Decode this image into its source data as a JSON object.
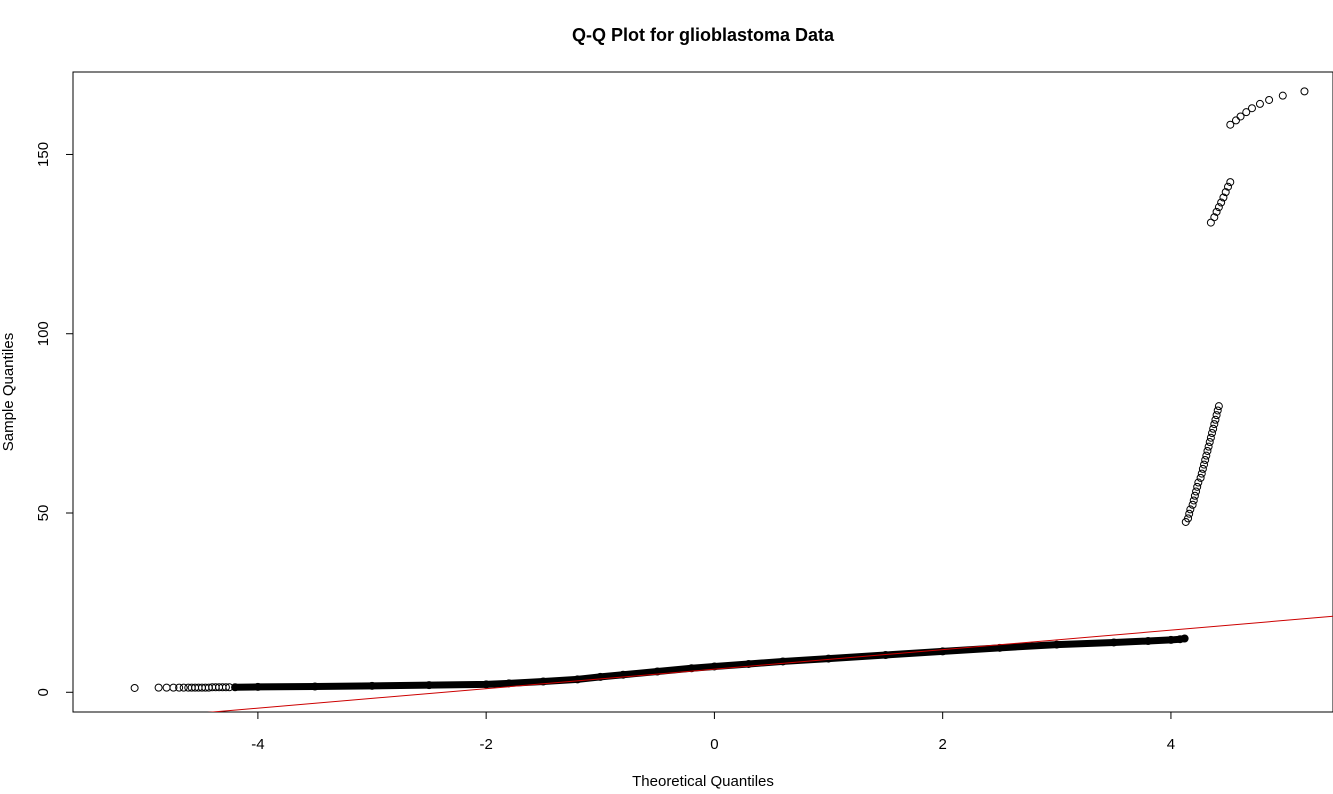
{
  "chart_data": {
    "type": "scatter",
    "title": "Q-Q Plot for glioblastoma Data",
    "xlabel": "Theoretical Quantiles",
    "ylabel": "Sample Quantiles",
    "xlim": [
      -5.62,
      5.42
    ],
    "ylim": [
      -5.5,
      173
    ],
    "x_ticks": [
      -4,
      -2,
      0,
      2,
      4
    ],
    "y_ticks": [
      0,
      50,
      100,
      150
    ],
    "grid": false,
    "point_color": "#000000",
    "line_color": "#cc0000",
    "reference_line": {
      "intercept": 6.45,
      "slope": 2.72
    },
    "series": [
      {
        "points": [
          [
            -5.08,
            1.2
          ],
          [
            -4.87,
            1.3
          ],
          [
            -4.8,
            1.3
          ],
          [
            -4.74,
            1.3
          ],
          [
            -4.69,
            1.3
          ],
          [
            -4.65,
            1.3
          ],
          [
            -4.61,
            1.3
          ],
          [
            -4.58,
            1.3
          ],
          [
            -4.55,
            1.3
          ],
          [
            -4.52,
            1.3
          ],
          [
            -4.49,
            1.3
          ],
          [
            -4.46,
            1.3
          ],
          [
            -4.43,
            1.3
          ],
          [
            -4.4,
            1.4
          ],
          [
            -4.37,
            1.4
          ],
          [
            -4.34,
            1.4
          ],
          [
            -4.31,
            1.4
          ],
          [
            -4.28,
            1.4
          ],
          [
            -4.25,
            1.4
          ],
          [
            -4.2,
            1.4
          ],
          [
            -4.0,
            1.5
          ],
          [
            -3.5,
            1.6
          ],
          [
            -3.0,
            1.8
          ],
          [
            -2.5,
            2.0
          ],
          [
            -2.0,
            2.2
          ],
          [
            -1.8,
            2.5
          ],
          [
            -1.5,
            3.0
          ],
          [
            -1.2,
            3.6
          ],
          [
            -1.0,
            4.3
          ],
          [
            -0.8,
            4.9
          ],
          [
            -0.5,
            5.8
          ],
          [
            -0.2,
            6.7
          ],
          [
            0.0,
            7.2
          ],
          [
            0.3,
            7.9
          ],
          [
            0.6,
            8.6
          ],
          [
            1.0,
            9.4
          ],
          [
            1.5,
            10.4
          ],
          [
            2.0,
            11.4
          ],
          [
            2.5,
            12.4
          ],
          [
            3.0,
            13.3
          ],
          [
            3.5,
            13.9
          ],
          [
            3.8,
            14.3
          ],
          [
            4.0,
            14.6
          ],
          [
            4.08,
            14.8
          ],
          [
            4.12,
            15.0
          ],
          [
            4.13,
            47.5
          ],
          [
            4.15,
            48.5
          ],
          [
            4.16,
            49.8
          ],
          [
            4.17,
            51.0
          ],
          [
            4.19,
            52.3
          ],
          [
            4.2,
            53.5
          ],
          [
            4.21,
            54.8
          ],
          [
            4.22,
            56.0
          ],
          [
            4.23,
            57.3
          ],
          [
            4.24,
            58.5
          ],
          [
            4.26,
            59.8
          ],
          [
            4.27,
            61.0
          ],
          [
            4.28,
            62.3
          ],
          [
            4.29,
            63.5
          ],
          [
            4.3,
            64.8
          ],
          [
            4.31,
            66.0
          ],
          [
            4.32,
            67.3
          ],
          [
            4.33,
            68.5
          ],
          [
            4.34,
            69.8
          ],
          [
            4.35,
            71.0
          ],
          [
            4.36,
            72.3
          ],
          [
            4.37,
            73.5
          ],
          [
            4.38,
            74.8
          ],
          [
            4.39,
            76.0
          ],
          [
            4.4,
            77.3
          ],
          [
            4.41,
            78.6
          ],
          [
            4.42,
            79.8
          ],
          [
            4.35,
            131.0
          ],
          [
            4.38,
            132.5
          ],
          [
            4.4,
            134.0
          ],
          [
            4.42,
            135.3
          ],
          [
            4.44,
            136.6
          ],
          [
            4.46,
            138.0
          ],
          [
            4.48,
            139.5
          ],
          [
            4.5,
            141.0
          ],
          [
            4.52,
            142.3
          ],
          [
            4.52,
            158.3
          ],
          [
            4.57,
            159.5
          ],
          [
            4.61,
            160.6
          ],
          [
            4.66,
            161.8
          ],
          [
            4.71,
            162.9
          ],
          [
            4.78,
            164.1
          ],
          [
            4.86,
            165.2
          ],
          [
            4.98,
            166.4
          ],
          [
            5.17,
            167.6
          ]
        ]
      }
    ]
  }
}
